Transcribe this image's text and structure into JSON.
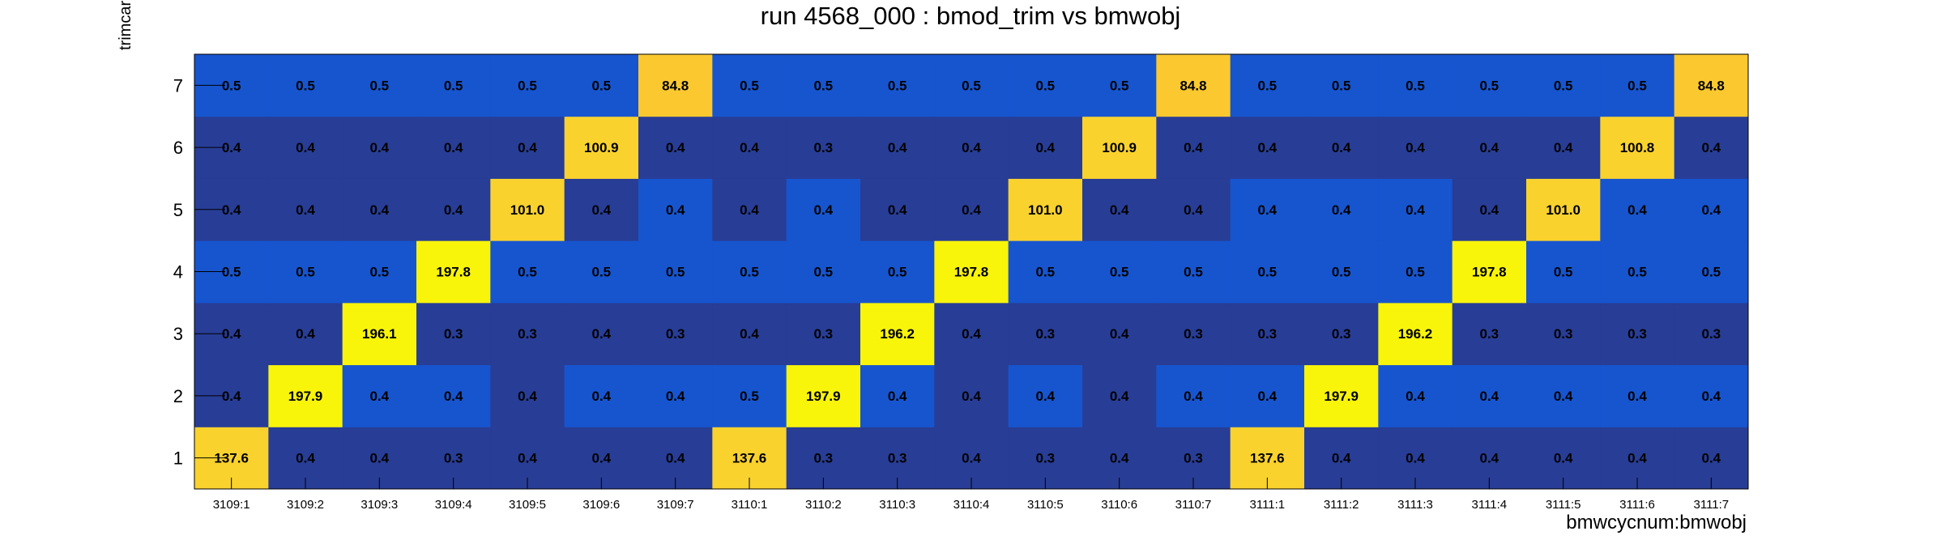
{
  "chart_data": {
    "type": "heatmap",
    "title": "run 4568_000 : bmod_trim vs bmwobj",
    "xlabel": "bmwcycnum:bmwobj",
    "ylabel": "trimcard #",
    "x_categories": [
      "3109:1",
      "3109:2",
      "3109:3",
      "3109:4",
      "3109:5",
      "3109:6",
      "3109:7",
      "3110:1",
      "3110:2",
      "3110:3",
      "3110:4",
      "3110:5",
      "3110:6",
      "3110:7",
      "3111:1",
      "3111:2",
      "3111:3",
      "3111:4",
      "3111:5",
      "3111:6",
      "3111:7"
    ],
    "y_categories": [
      "1",
      "2",
      "3",
      "4",
      "5",
      "6",
      "7"
    ],
    "values": [
      [
        "137.6",
        "0.4",
        "0.4",
        "0.3",
        "0.4",
        "0.4",
        "0.4",
        "137.6",
        "0.3",
        "0.3",
        "0.4",
        "0.3",
        "0.4",
        "0.3",
        "137.6",
        "0.4",
        "0.4",
        "0.4",
        "0.4",
        "0.4",
        "0.4"
      ],
      [
        "0.4",
        "197.9",
        "0.4",
        "0.4",
        "0.4",
        "0.4",
        "0.4",
        "0.5",
        "197.9",
        "0.4",
        "0.4",
        "0.4",
        "0.4",
        "0.4",
        "0.4",
        "197.9",
        "0.4",
        "0.4",
        "0.4",
        "0.4",
        "0.4"
      ],
      [
        "0.4",
        "0.4",
        "196.1",
        "0.3",
        "0.3",
        "0.4",
        "0.3",
        "0.4",
        "0.3",
        "196.2",
        "0.4",
        "0.3",
        "0.4",
        "0.3",
        "0.3",
        "0.3",
        "196.2",
        "0.3",
        "0.3",
        "0.3",
        "0.3"
      ],
      [
        "0.5",
        "0.5",
        "0.5",
        "197.8",
        "0.5",
        "0.5",
        "0.5",
        "0.5",
        "0.5",
        "0.5",
        "197.8",
        "0.5",
        "0.5",
        "0.5",
        "0.5",
        "0.5",
        "0.5",
        "197.8",
        "0.5",
        "0.5",
        "0.5"
      ],
      [
        "0.4",
        "0.4",
        "0.4",
        "0.4",
        "101.0",
        "0.4",
        "0.4",
        "0.4",
        "0.4",
        "0.4",
        "0.4",
        "101.0",
        "0.4",
        "0.4",
        "0.4",
        "0.4",
        "0.4",
        "0.4",
        "101.0",
        "0.4",
        "0.4"
      ],
      [
        "0.4",
        "0.4",
        "0.4",
        "0.4",
        "0.4",
        "100.9",
        "0.4",
        "0.4",
        "0.3",
        "0.4",
        "0.4",
        "0.4",
        "100.9",
        "0.4",
        "0.4",
        "0.4",
        "0.4",
        "0.4",
        "0.4",
        "100.8",
        "0.4"
      ],
      [
        "0.5",
        "0.5",
        "0.5",
        "0.5",
        "0.5",
        "0.5",
        "84.8",
        "0.5",
        "0.5",
        "0.5",
        "0.5",
        "0.5",
        "0.5",
        "84.8",
        "0.5",
        "0.5",
        "0.5",
        "0.5",
        "0.5",
        "0.5",
        "84.8"
      ]
    ],
    "cell_colors": [
      [
        "#f9d22e",
        "#283d96",
        "#283d96",
        "#283d96",
        "#283d96",
        "#283d96",
        "#283d96",
        "#f9d22e",
        "#283d96",
        "#283d96",
        "#283d96",
        "#283d96",
        "#283d96",
        "#283d96",
        "#f9d22e",
        "#283d96",
        "#283d96",
        "#283d96",
        "#283d96",
        "#283d96",
        "#283d96"
      ],
      [
        "#283d96",
        "#f8f40a",
        "#1755cf",
        "#1755cf",
        "#283d96",
        "#1755cf",
        "#1755cf",
        "#1755cf",
        "#f8f40a",
        "#1755cf",
        "#283d96",
        "#1755cf",
        "#283d96",
        "#1755cf",
        "#1755cf",
        "#f8f40a",
        "#1755cf",
        "#1755cf",
        "#1755cf",
        "#1755cf",
        "#1755cf"
      ],
      [
        "#283d96",
        "#283d96",
        "#f8f40a",
        "#283d96",
        "#283d96",
        "#283d96",
        "#283d96",
        "#283d96",
        "#283d96",
        "#f8f40a",
        "#283d96",
        "#283d96",
        "#283d96",
        "#283d96",
        "#283d96",
        "#283d96",
        "#f8f40a",
        "#283d96",
        "#283d96",
        "#283d96",
        "#283d96"
      ],
      [
        "#1755cf",
        "#1755cf",
        "#1755cf",
        "#f8f40a",
        "#1755cf",
        "#1755cf",
        "#1755cf",
        "#1755cf",
        "#1755cf",
        "#1755cf",
        "#f8f40a",
        "#1755cf",
        "#1755cf",
        "#1755cf",
        "#1755cf",
        "#1755cf",
        "#1755cf",
        "#f8f40a",
        "#1755cf",
        "#1755cf",
        "#1755cf"
      ],
      [
        "#283d96",
        "#283d96",
        "#283d96",
        "#283d96",
        "#f9d22e",
        "#283d96",
        "#1755cf",
        "#283d96",
        "#1755cf",
        "#283d96",
        "#283d96",
        "#f9d22e",
        "#283d96",
        "#283d96",
        "#1755cf",
        "#1755cf",
        "#1755cf",
        "#283d96",
        "#f9d22e",
        "#1755cf",
        "#1755cf"
      ],
      [
        "#283d96",
        "#283d96",
        "#283d96",
        "#283d96",
        "#283d96",
        "#f9d22e",
        "#283d96",
        "#283d96",
        "#283d96",
        "#283d96",
        "#283d96",
        "#283d96",
        "#f9d22e",
        "#283d96",
        "#283d96",
        "#283d96",
        "#283d96",
        "#283d96",
        "#283d96",
        "#f9d22e",
        "#283d96"
      ],
      [
        "#1755cf",
        "#1755cf",
        "#1755cf",
        "#1755cf",
        "#1755cf",
        "#1755cf",
        "#fbc92f",
        "#1755cf",
        "#1755cf",
        "#1755cf",
        "#1755cf",
        "#1755cf",
        "#1755cf",
        "#fbc92f",
        "#1755cf",
        "#1755cf",
        "#1755cf",
        "#1755cf",
        "#1755cf",
        "#1755cf",
        "#fbc92f"
      ]
    ]
  }
}
